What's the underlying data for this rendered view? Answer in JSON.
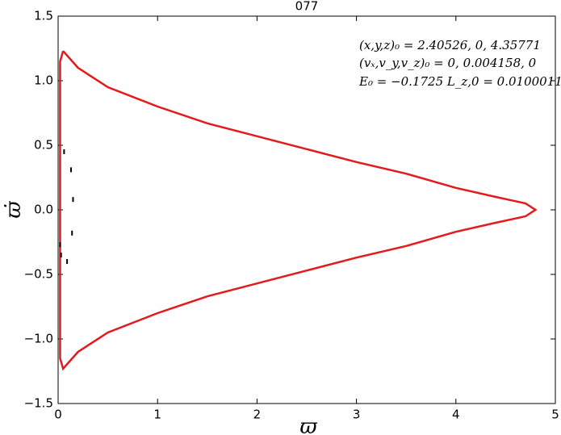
{
  "chart_data": {
    "type": "line",
    "title": "077",
    "xlabel": "ϖ",
    "ylabel": "ϖ̇",
    "xlim": [
      0,
      5
    ],
    "ylim": [
      -1.5,
      1.5
    ],
    "xticks": [
      0,
      1,
      2,
      3,
      4,
      5
    ],
    "yticks": [
      {
        "value": -1.5,
        "label": "−1.5"
      },
      {
        "value": -1.0,
        "label": "−1.0"
      },
      {
        "value": -0.5,
        "label": "−0.5"
      },
      {
        "value": 0,
        "label": "0.0"
      },
      0.5,
      {
        "value": 1.0,
        "label": "1.0"
      },
      1.5
    ],
    "grid": false,
    "annotations": [
      "(x,y,z)₀ = 2.40526, 0, 4.35771",
      "(vₓ,v_y,v_z)₀ = 0, 0.004158, 0",
      "E₀ = −0.1725  L_z,0 = 0.0100011"
    ],
    "series": [
      {
        "color": "#e31a1c",
        "x": [
          0.05,
          0.2,
          0.5,
          1,
          1.5,
          2,
          2.5,
          3,
          3.5,
          4,
          4.4,
          4.7,
          4.8,
          4.7,
          4.4,
          4,
          3.5,
          3,
          2.5,
          2,
          1.5,
          1,
          0.5,
          0.2,
          0.05,
          0.02,
          0.02,
          0.02,
          0.02,
          0.02,
          0.05
        ],
        "y": [
          1.23,
          1.1,
          0.95,
          0.8,
          0.67,
          0.57,
          0.47,
          0.37,
          0.28,
          0.17,
          0.1,
          0.05,
          0,
          -0.05,
          -0.1,
          -0.17,
          -0.28,
          -0.37,
          -0.47,
          -0.57,
          -0.67,
          -0.8,
          -0.95,
          -1.1,
          -1.23,
          -1.15,
          -0.5,
          0,
          0.5,
          1.15,
          1.23
        ]
      }
    ],
    "points": {
      "color": "#000000",
      "x": [
        0.06,
        0.13,
        0.15,
        0.14,
        0.09,
        0.02,
        0.03
      ],
      "y": [
        0.45,
        0.31,
        0.08,
        -0.18,
        -0.4,
        -0.27,
        -0.35
      ]
    }
  }
}
